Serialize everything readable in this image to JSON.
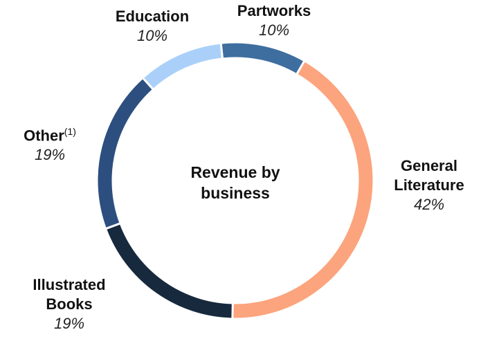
{
  "chart_data": {
    "type": "donut",
    "title": "Revenue by business",
    "categories": [
      "Partworks",
      "General Literature",
      "Illustrated Books",
      "Other",
      "Education"
    ],
    "values": [
      10,
      42,
      19,
      19,
      10
    ],
    "value_labels": [
      "10%",
      "42%",
      "19%",
      "19%",
      "10%"
    ],
    "colors": [
      "#3e6e9f",
      "#fca47d",
      "#17293d",
      "#2c4f7f",
      "#aad0fa"
    ],
    "other_note": "(1)"
  }
}
